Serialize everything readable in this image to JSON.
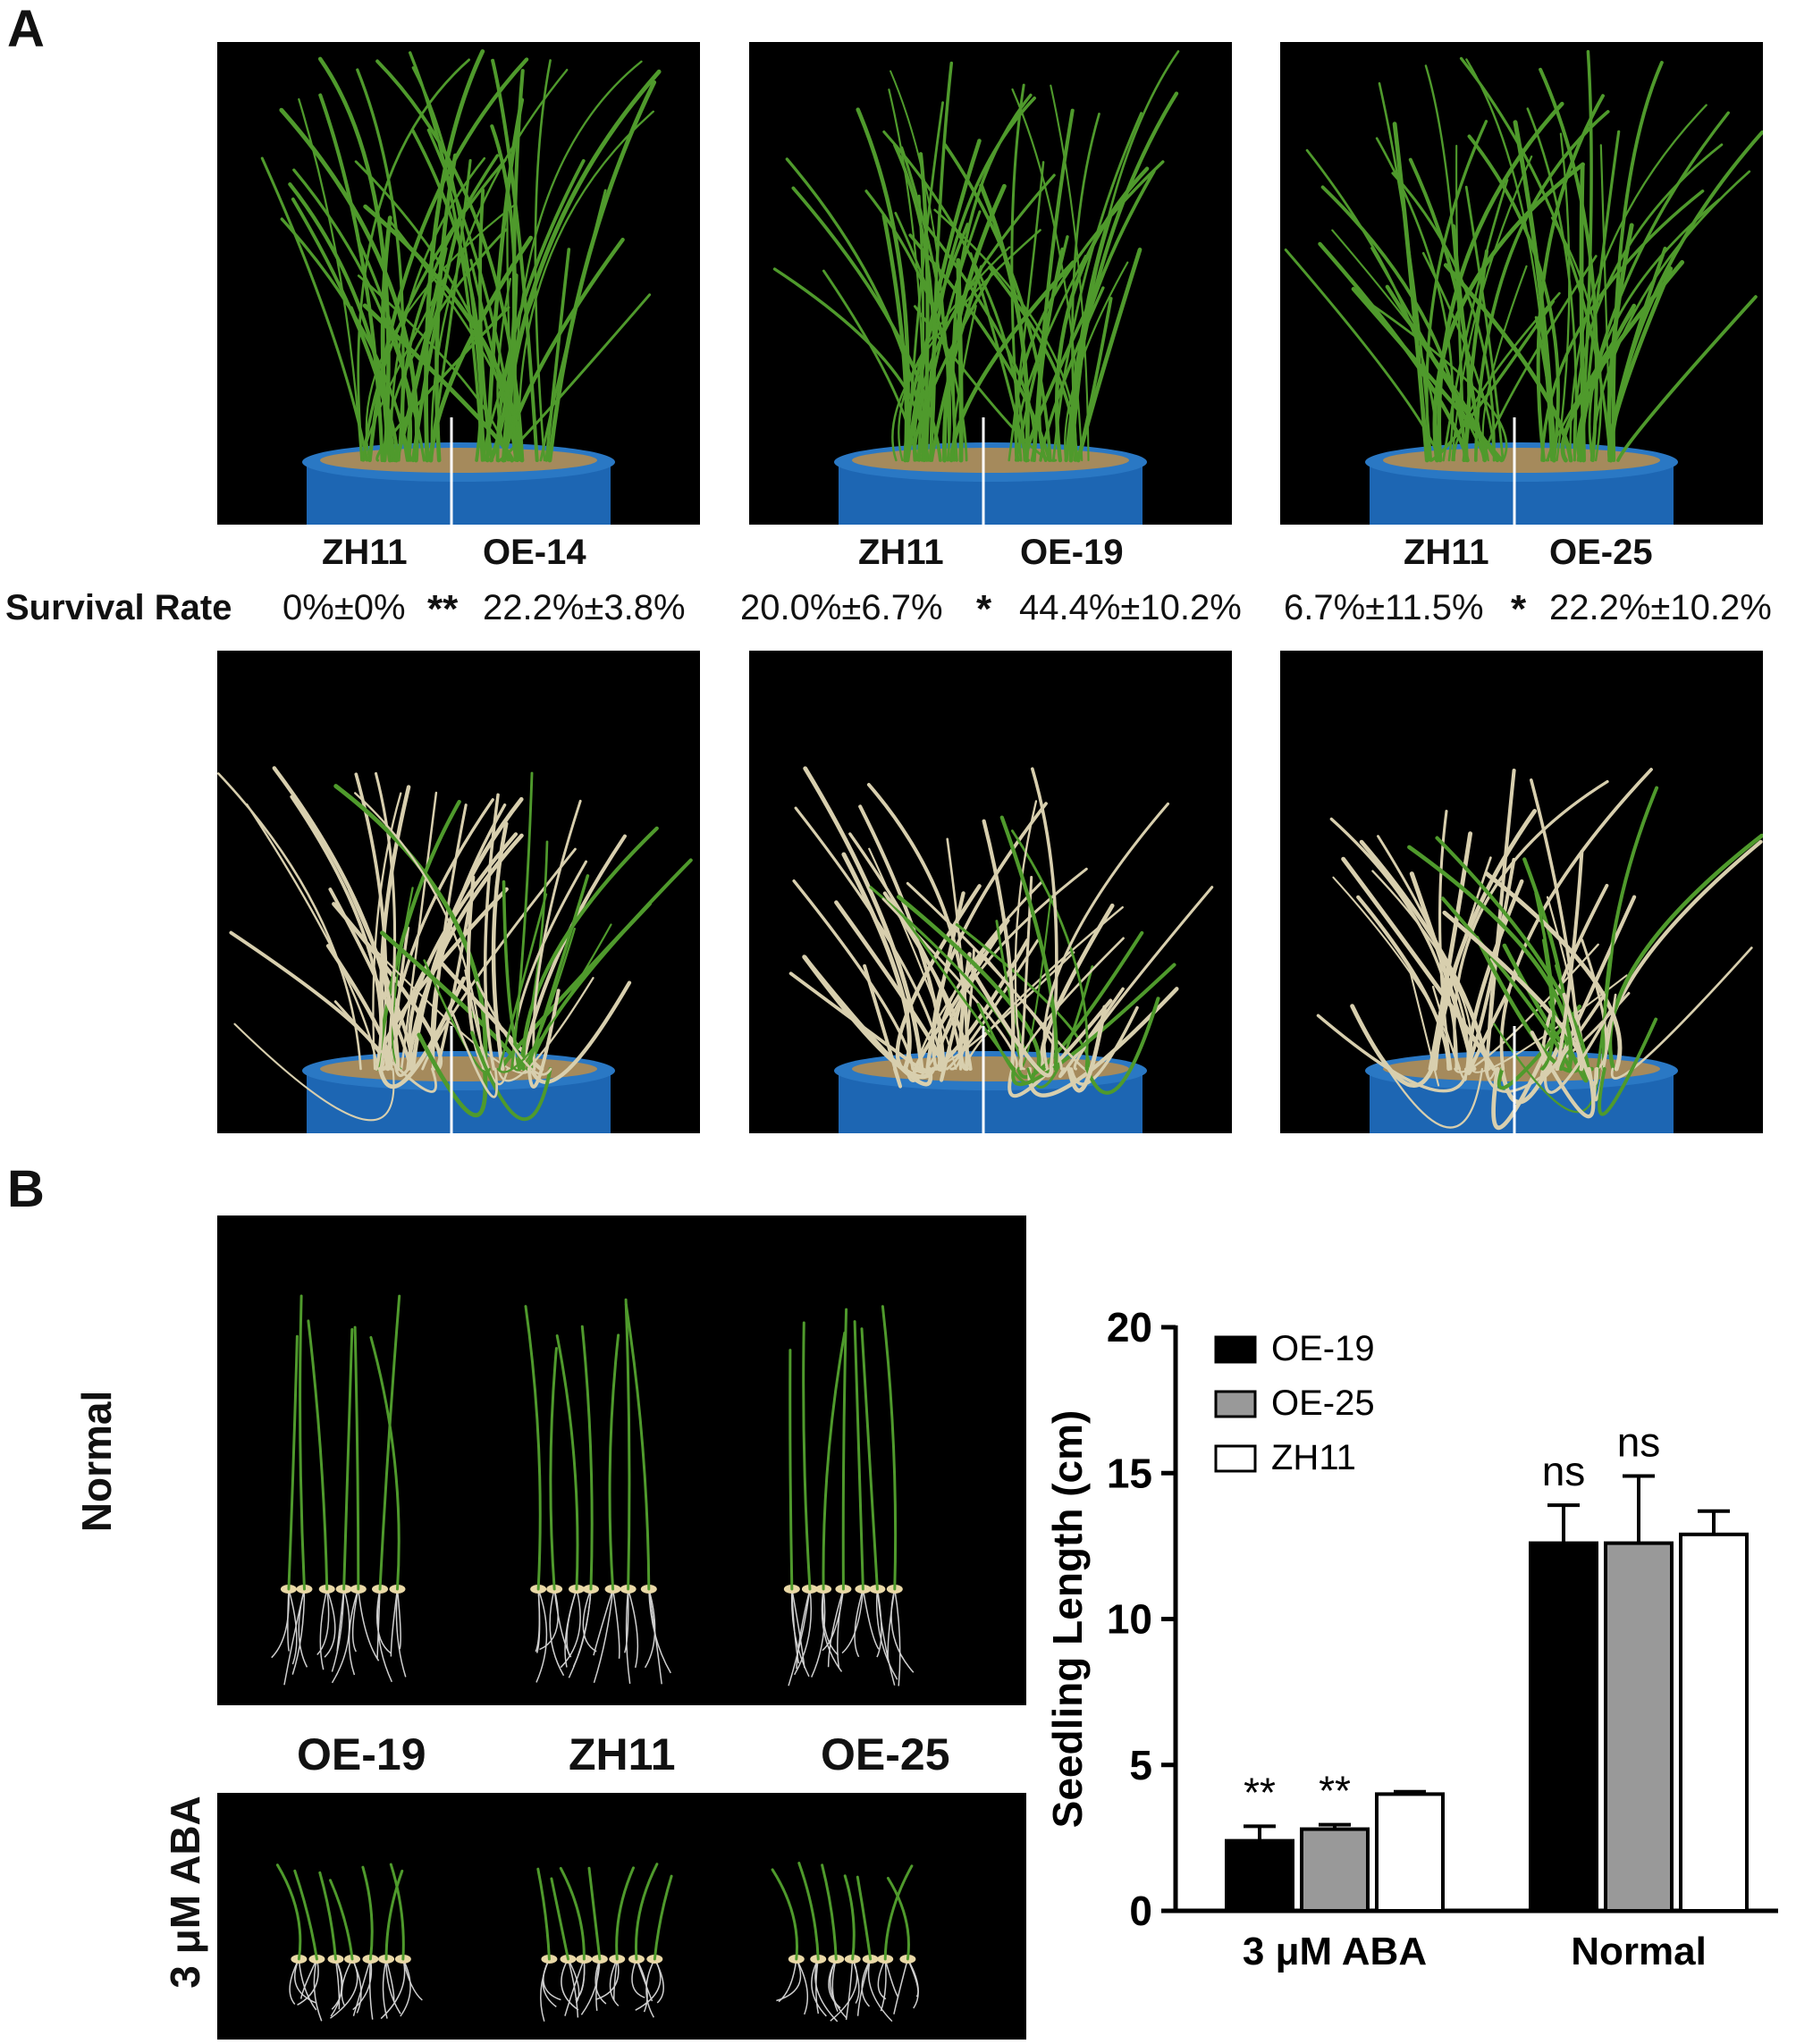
{
  "panel_a": {
    "letter": "A",
    "groups": [
      {
        "control": "ZH11",
        "line": "OE-14",
        "control_rate": "0%±0%",
        "sig": "**",
        "line_rate": "22.2%±3.8%"
      },
      {
        "control": "ZH11",
        "line": "OE-19",
        "control_rate": "20.0%±6.7%",
        "sig": "*",
        "line_rate": "44.4%±10.2%"
      },
      {
        "control": "ZH11",
        "line": "OE-25",
        "control_rate": "6.7%±11.5%",
        "sig": "*",
        "line_rate": "22.2%±10.2%"
      }
    ],
    "survival_label": "Survival Rate"
  },
  "panel_b": {
    "letter": "B",
    "row_labels": {
      "normal": "Normal",
      "aba": "3 μM ABA"
    },
    "lines": [
      "OE-19",
      "ZH11",
      "OE-25"
    ]
  },
  "chart_data": {
    "type": "bar",
    "categories": [
      "3 μM ABA",
      "Normal"
    ],
    "ylabel": "Seedling Length (cm)",
    "xlabel": "",
    "ylim": [
      0,
      20
    ],
    "yticks": [
      0,
      5,
      10,
      15,
      20
    ],
    "legend_position": "top-left",
    "series": [
      {
        "name": "OE-19",
        "color": "#000000",
        "values": [
          2.4,
          12.6
        ],
        "errors": [
          0.5,
          1.3
        ],
        "annotations": [
          "**",
          "ns"
        ]
      },
      {
        "name": "OE-25",
        "color": "#999999",
        "values": [
          2.8,
          12.6
        ],
        "errors": [
          0.15,
          2.3
        ],
        "annotations": [
          "**",
          "ns"
        ]
      },
      {
        "name": "ZH11",
        "color": "#ffffff",
        "values": [
          4.0,
          12.9
        ],
        "errors": [
          0.08,
          0.8
        ],
        "annotations": [
          "",
          ""
        ]
      }
    ]
  },
  "colors": {
    "photo_background": "#000000",
    "leaf_green": "#4f9a2c",
    "dry_leaf": "#d8cfae",
    "pot_blue": "#1d66b3",
    "soil": "#a58a5c"
  }
}
